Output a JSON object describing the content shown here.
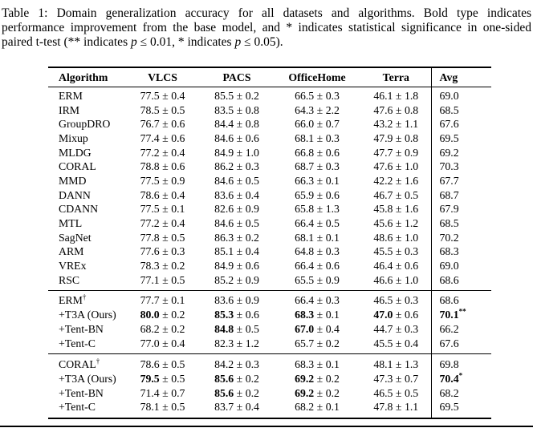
{
  "caption": {
    "lines": [
      [
        {
          "t": "Table 1: Domain generalization accuracy for all datasets and algorithms. Bold type indicates",
          "i": false
        }
      ],
      [
        {
          "t": "performance improvement from the base model, and * indicates statistical significance in one-sided",
          "i": false
        }
      ],
      [
        {
          "t": "paired t-test (** indicates ",
          "i": false
        },
        {
          "t": "p",
          "i": true
        },
        {
          "t": " ≤ 0.01, * indicates ",
          "i": false
        },
        {
          "t": "p",
          "i": true
        },
        {
          "t": " ≤ 0.05).",
          "i": false
        }
      ]
    ]
  },
  "table": {
    "pm_symbol": "±",
    "dagger_symbol": "†",
    "columns": [
      "Algorithm",
      "VLCS",
      "PACS",
      "OfficeHome",
      "Terra",
      "Avg"
    ],
    "sections": [
      {
        "rows": [
          {
            "alg": "ERM",
            "cells": [
              {
                "m": "77.5",
                "e": "0.4"
              },
              {
                "m": "85.5",
                "e": "0.2"
              },
              {
                "m": "66.5",
                "e": "0.3"
              },
              {
                "m": "46.1",
                "e": "1.8"
              }
            ],
            "avg": {
              "m": "69.0"
            }
          },
          {
            "alg": "IRM",
            "cells": [
              {
                "m": "78.5",
                "e": "0.5"
              },
              {
                "m": "83.5",
                "e": "0.8"
              },
              {
                "m": "64.3",
                "e": "2.2"
              },
              {
                "m": "47.6",
                "e": "0.8"
              }
            ],
            "avg": {
              "m": "68.5"
            }
          },
          {
            "alg": "GroupDRO",
            "cells": [
              {
                "m": "76.7",
                "e": "0.6"
              },
              {
                "m": "84.4",
                "e": "0.8"
              },
              {
                "m": "66.0",
                "e": "0.7"
              },
              {
                "m": "43.2",
                "e": "1.1"
              }
            ],
            "avg": {
              "m": "67.6"
            }
          },
          {
            "alg": "Mixup",
            "cells": [
              {
                "m": "77.4",
                "e": "0.6"
              },
              {
                "m": "84.6",
                "e": "0.6"
              },
              {
                "m": "68.1",
                "e": "0.3"
              },
              {
                "m": "47.9",
                "e": "0.8"
              }
            ],
            "avg": {
              "m": "69.5"
            }
          },
          {
            "alg": "MLDG",
            "cells": [
              {
                "m": "77.2",
                "e": "0.4"
              },
              {
                "m": "84.9",
                "e": "1.0"
              },
              {
                "m": "66.8",
                "e": "0.6"
              },
              {
                "m": "47.7",
                "e": "0.9"
              }
            ],
            "avg": {
              "m": "69.2"
            }
          },
          {
            "alg": "CORAL",
            "cells": [
              {
                "m": "78.8",
                "e": "0.6"
              },
              {
                "m": "86.2",
                "e": "0.3"
              },
              {
                "m": "68.7",
                "e": "0.3"
              },
              {
                "m": "47.6",
                "e": "1.0"
              }
            ],
            "avg": {
              "m": "70.3"
            }
          },
          {
            "alg": "MMD",
            "cells": [
              {
                "m": "77.5",
                "e": "0.9"
              },
              {
                "m": "84.6",
                "e": "0.5"
              },
              {
                "m": "66.3",
                "e": "0.1"
              },
              {
                "m": "42.2",
                "e": "1.6"
              }
            ],
            "avg": {
              "m": "67.7"
            }
          },
          {
            "alg": "DANN",
            "cells": [
              {
                "m": "78.6",
                "e": "0.4"
              },
              {
                "m": "83.6",
                "e": "0.4"
              },
              {
                "m": "65.9",
                "e": "0.6"
              },
              {
                "m": "46.7",
                "e": "0.5"
              }
            ],
            "avg": {
              "m": "68.7"
            }
          },
          {
            "alg": "CDANN",
            "cells": [
              {
                "m": "77.5",
                "e": "0.1"
              },
              {
                "m": "82.6",
                "e": "0.9"
              },
              {
                "m": "65.8",
                "e": "1.3"
              },
              {
                "m": "45.8",
                "e": "1.6"
              }
            ],
            "avg": {
              "m": "67.9"
            }
          },
          {
            "alg": "MTL",
            "cells": [
              {
                "m": "77.2",
                "e": "0.4"
              },
              {
                "m": "84.6",
                "e": "0.5"
              },
              {
                "m": "66.4",
                "e": "0.5"
              },
              {
                "m": "45.6",
                "e": "1.2"
              }
            ],
            "avg": {
              "m": "68.5"
            }
          },
          {
            "alg": "SagNet",
            "cells": [
              {
                "m": "77.8",
                "e": "0.5"
              },
              {
                "m": "86.3",
                "e": "0.2"
              },
              {
                "m": "68.1",
                "e": "0.1"
              },
              {
                "m": "48.6",
                "e": "1.0"
              }
            ],
            "avg": {
              "m": "70.2"
            }
          },
          {
            "alg": "ARM",
            "cells": [
              {
                "m": "77.6",
                "e": "0.3"
              },
              {
                "m": "85.1",
                "e": "0.4"
              },
              {
                "m": "64.8",
                "e": "0.3"
              },
              {
                "m": "45.5",
                "e": "0.3"
              }
            ],
            "avg": {
              "m": "68.3"
            }
          },
          {
            "alg": "VREx",
            "cells": [
              {
                "m": "78.3",
                "e": "0.2"
              },
              {
                "m": "84.9",
                "e": "0.6"
              },
              {
                "m": "66.4",
                "e": "0.6"
              },
              {
                "m": "46.4",
                "e": "0.6"
              }
            ],
            "avg": {
              "m": "69.0"
            }
          },
          {
            "alg": "RSC",
            "cells": [
              {
                "m": "77.1",
                "e": "0.5"
              },
              {
                "m": "85.2",
                "e": "0.9"
              },
              {
                "m": "65.5",
                "e": "0.9"
              },
              {
                "m": "46.6",
                "e": "1.0"
              }
            ],
            "avg": {
              "m": "68.6"
            }
          }
        ]
      },
      {
        "rows": [
          {
            "alg": "ERM",
            "dagger": true,
            "cells": [
              {
                "m": "77.7",
                "e": "0.1"
              },
              {
                "m": "83.6",
                "e": "0.9"
              },
              {
                "m": "66.4",
                "e": "0.3"
              },
              {
                "m": "46.5",
                "e": "0.3"
              }
            ],
            "avg": {
              "m": "68.6"
            }
          },
          {
            "alg": "+T3A (Ours)",
            "cells": [
              {
                "m": "80.0",
                "e": "0.2",
                "b": true
              },
              {
                "m": "85.3",
                "e": "0.6",
                "b": true
              },
              {
                "m": "68.3",
                "e": "0.1",
                "b": true
              },
              {
                "m": "47.0",
                "e": "0.6",
                "b": true
              }
            ],
            "avg": {
              "m": "70.1",
              "b": true,
              "s": "**"
            }
          },
          {
            "alg": "+Tent-BN",
            "cells": [
              {
                "m": "68.2",
                "e": "0.2"
              },
              {
                "m": "84.8",
                "e": "0.5",
                "b": true
              },
              {
                "m": "67.0",
                "e": "0.4",
                "b": true
              },
              {
                "m": "44.7",
                "e": "0.3"
              }
            ],
            "avg": {
              "m": "66.2"
            }
          },
          {
            "alg": "+Tent-C",
            "cells": [
              {
                "m": "77.0",
                "e": "0.4"
              },
              {
                "m": "82.3",
                "e": "1.2"
              },
              {
                "m": "65.7",
                "e": "0.2"
              },
              {
                "m": "45.5",
                "e": "0.4"
              }
            ],
            "avg": {
              "m": "67.6"
            }
          }
        ]
      },
      {
        "rows": [
          {
            "alg": "CORAL",
            "dagger": true,
            "cells": [
              {
                "m": "78.6",
                "e": "0.5"
              },
              {
                "m": "84.2",
                "e": "0.3"
              },
              {
                "m": "68.3",
                "e": "0.1"
              },
              {
                "m": "48.1",
                "e": "1.3"
              }
            ],
            "avg": {
              "m": "69.8"
            }
          },
          {
            "alg": "+T3A (Ours)",
            "cells": [
              {
                "m": "79.5",
                "e": "0.5",
                "b": true
              },
              {
                "m": "85.6",
                "e": "0.2",
                "b": true
              },
              {
                "m": "69.2",
                "e": "0.2",
                "b": true
              },
              {
                "m": "47.3",
                "e": "0.7"
              }
            ],
            "avg": {
              "m": "70.4",
              "b": true,
              "s": "*"
            }
          },
          {
            "alg": "+Tent-BN",
            "cells": [
              {
                "m": "71.4",
                "e": "0.7"
              },
              {
                "m": "85.6",
                "e": "0.2",
                "b": true
              },
              {
                "m": "69.2",
                "e": "0.2",
                "b": true
              },
              {
                "m": "46.5",
                "e": "0.5"
              }
            ],
            "avg": {
              "m": "68.2"
            }
          },
          {
            "alg": "+Tent-C",
            "cells": [
              {
                "m": "78.1",
                "e": "0.5"
              },
              {
                "m": "83.7",
                "e": "0.4"
              },
              {
                "m": "68.2",
                "e": "0.1"
              },
              {
                "m": "47.8",
                "e": "1.1"
              }
            ],
            "avg": {
              "m": "69.5"
            }
          }
        ]
      }
    ]
  }
}
